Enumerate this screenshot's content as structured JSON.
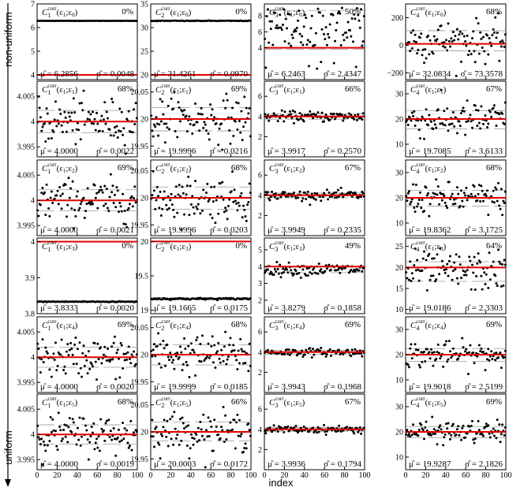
{
  "figure": {
    "left_label": "non-uniform",
    "left_label_bottom": "uniform",
    "xlabel": "index",
    "xticks": [
      "0",
      "20",
      "40",
      "60",
      "80",
      "100"
    ]
  },
  "chart_data": {
    "type": "scatter",
    "xlim": [
      0,
      100
    ],
    "columns": [
      {
        "yticks_by_row": [
          [
            "4",
            "5",
            "6",
            "7"
          ],
          [
            "3.995",
            "4",
            "4.005"
          ],
          [
            "3.995",
            "4",
            "4.005"
          ],
          [
            "3.8",
            "3.9",
            "4"
          ],
          [
            "3.995",
            "4",
            "4.005"
          ],
          [
            "3.995",
            "4",
            "4.005"
          ]
        ]
      },
      {
        "yticks_by_row": [
          [
            "20",
            "25",
            "30",
            "35"
          ],
          [
            "19.95",
            "20",
            "20.05"
          ],
          [
            "19.95",
            "20",
            "20.05"
          ],
          [
            "19",
            "19.5",
            "20"
          ],
          [
            "19.95",
            "20",
            "20.05"
          ],
          [
            "19.95",
            "20",
            "20.05"
          ]
        ]
      },
      {
        "yticks_by_row": [
          [
            "4",
            "6",
            "8"
          ],
          [
            "2",
            "4",
            "6"
          ],
          [
            "2",
            "4",
            "6"
          ],
          [
            "2",
            "3",
            "4",
            "5"
          ],
          [
            "2",
            "4",
            "6"
          ],
          [
            "2",
            "4",
            "6"
          ]
        ]
      },
      {
        "yticks_by_row": [
          [
            "−200",
            "0",
            "200"
          ],
          [
            "10",
            "20",
            "30"
          ],
          [
            "10",
            "20",
            "30"
          ],
          [
            "10",
            "15",
            "20",
            "25"
          ],
          [
            "10",
            "20",
            "30"
          ],
          [
            "10",
            "20",
            "30"
          ]
        ]
      }
    ],
    "panels": [
      {
        "row": 0,
        "col": 0,
        "name": "C_1^corr(ε1;ε0)",
        "C": "1",
        "e": "0",
        "pct": "0%",
        "mu": "6.2856",
        "sigma": "0.0048",
        "ylim": [
          3.8,
          7
        ],
        "mean": 6.2856,
        "band": [
          6.2808,
          6.2904
        ],
        "red": 4.0,
        "pattern": "flat"
      },
      {
        "row": 0,
        "col": 1,
        "name": "C_2^corr(ε1;ε0)",
        "C": "2",
        "e": "0",
        "pct": "0%",
        "mu": "31.4261",
        "sigma": "0.0970",
        "ylim": [
          19,
          35
        ],
        "mean": 31.4261,
        "band": [
          31.33,
          31.52
        ],
        "red": 20.0,
        "pattern": "flat"
      },
      {
        "row": 0,
        "col": 2,
        "name": "C_3^corr(ε1;ε0)",
        "C": "3",
        "e": "0",
        "pct": "50%",
        "mu": "6.2463",
        "sigma": "2.4347",
        "ylim": [
          0,
          9.5
        ],
        "mean": 6.2463,
        "band": [
          3.81,
          8.68
        ],
        "red": 4.0,
        "pattern": "bimodal",
        "lo": [
          1.2,
          2.5
        ],
        "hi": [
          4.2,
          9
        ]
      },
      {
        "row": 0,
        "col": 3,
        "name": "C_4^corr(ε1;ε0)",
        "C": "4",
        "e": "0",
        "pct": "68%",
        "mu": "32.0834",
        "sigma": "73.3578",
        "ylim": [
          -250,
          300
        ],
        "mean": 32.08,
        "band": [
          -41.27,
          105.44
        ],
        "red": 10,
        "pattern": "noise"
      },
      {
        "row": 1,
        "col": 0,
        "name": "C_1^corr(ε1;ε1)",
        "C": "1",
        "e": "1",
        "pct": "68%",
        "mu": "4.0000",
        "sigma": "0.0022",
        "ylim": [
          3.993,
          4.008
        ],
        "mean": 4.0,
        "band": [
          3.9978,
          4.0022
        ],
        "red": 4.0,
        "pattern": "noise"
      },
      {
        "row": 1,
        "col": 1,
        "name": "C_2^corr(ε1;ε1)",
        "C": "2",
        "e": "1",
        "pct": "69%",
        "mu": "19.9996",
        "sigma": "0.0216",
        "ylim": [
          19.93,
          20.07
        ],
        "mean": 19.9996,
        "band": [
          19.978,
          20.021
        ],
        "red": 20.0,
        "pattern": "noise"
      },
      {
        "row": 1,
        "col": 2,
        "name": "C_3^corr(ε1;ε1)",
        "C": "3",
        "e": "1",
        "pct": "66%",
        "mu": "3.9917",
        "sigma": "0.2570",
        "ylim": [
          0,
          7.5
        ],
        "mean": 3.9917,
        "band": [
          3.735,
          4.249
        ],
        "red": 4.0,
        "pattern": "noise"
      },
      {
        "row": 1,
        "col": 3,
        "name": "C_4^corr(ε1;ε1)",
        "C": "4",
        "e": "1",
        "pct": "67%",
        "mu": "19.7085",
        "sigma": "3.6133",
        "ylim": [
          5,
          35
        ],
        "mean": 19.7085,
        "band": [
          16.1,
          23.32
        ],
        "red": 20.0,
        "pattern": "noise"
      },
      {
        "row": 2,
        "col": 0,
        "name": "C_1^corr(ε1;ε2)",
        "C": "1",
        "e": "2",
        "pct": "69%",
        "mu": "4.0000",
        "sigma": "0.0021",
        "ylim": [
          3.993,
          4.008
        ],
        "mean": 4.0,
        "band": [
          3.9979,
          4.0021
        ],
        "red": 4.0,
        "pattern": "noise"
      },
      {
        "row": 2,
        "col": 1,
        "name": "C_2^corr(ε1;ε2)",
        "C": "2",
        "e": "2",
        "pct": "68%",
        "mu": "19.9996",
        "sigma": "0.0203",
        "ylim": [
          19.93,
          20.07
        ],
        "mean": 19.9996,
        "band": [
          19.979,
          20.02
        ],
        "red": 20.0,
        "pattern": "noise"
      },
      {
        "row": 2,
        "col": 2,
        "name": "C_3^corr(ε1;ε2)",
        "C": "3",
        "e": "2",
        "pct": "67%",
        "mu": "3.9949",
        "sigma": "0.2335",
        "ylim": [
          0,
          7.5
        ],
        "mean": 3.9949,
        "band": [
          3.761,
          4.228
        ],
        "red": 4.0,
        "pattern": "noise"
      },
      {
        "row": 2,
        "col": 3,
        "name": "C_4^corr(ε1;ε2)",
        "C": "4",
        "e": "2",
        "pct": "68%",
        "mu": "19.8362",
        "sigma": "3.1725",
        "ylim": [
          5,
          35
        ],
        "mean": 19.8362,
        "band": [
          16.66,
          23.01
        ],
        "red": 20.0,
        "pattern": "noise"
      },
      {
        "row": 3,
        "col": 0,
        "name": "C_1^corr(ε1;ε3)",
        "C": "1",
        "e": "3",
        "pct": "0%",
        "mu": "3.8333",
        "sigma": "0.0020",
        "ylim": [
          3.8,
          4.01
        ],
        "mean": 3.8333,
        "band": [
          3.8313,
          3.8353
        ],
        "red": 4.0,
        "pattern": "flat"
      },
      {
        "row": 3,
        "col": 1,
        "name": "C_2^corr(ε1;ε3)",
        "C": "2",
        "e": "3",
        "pct": "0%",
        "mu": "19.1665",
        "sigma": "0.0175",
        "ylim": [
          18.95,
          20.05
        ],
        "mean": 19.1665,
        "band": [
          19.149,
          19.184
        ],
        "red": 20.0,
        "pattern": "flat"
      },
      {
        "row": 3,
        "col": 2,
        "name": "C_3^corr(ε1;ε3)",
        "C": "3",
        "e": "3",
        "pct": "49%",
        "mu": "3.8279",
        "sigma": "0.1858",
        "ylim": [
          1.2,
          5.7
        ],
        "mean": 3.8279,
        "band": [
          3.642,
          4.014
        ],
        "red": 4.0,
        "pattern": "noise"
      },
      {
        "row": 3,
        "col": 3,
        "name": "C_4^corr(ε1;ε3)",
        "C": "4",
        "e": "3",
        "pct": "64%",
        "mu": "19.0186",
        "sigma": "2.3303",
        "ylim": [
          9,
          27
        ],
        "mean": 19.0186,
        "band": [
          16.69,
          21.35
        ],
        "red": 20.0,
        "pattern": "noise"
      },
      {
        "row": 4,
        "col": 0,
        "name": "C_1^corr(ε1;ε4)",
        "C": "1",
        "e": "4",
        "pct": "69%",
        "mu": "4.0000",
        "sigma": "0.0020",
        "ylim": [
          3.993,
          4.008
        ],
        "mean": 4.0,
        "band": [
          3.998,
          4.002
        ],
        "red": 4.0,
        "pattern": "noise"
      },
      {
        "row": 4,
        "col": 1,
        "name": "C_2^corr(ε1;ε4)",
        "C": "2",
        "e": "4",
        "pct": "68%",
        "mu": "19.9999",
        "sigma": "0.0185",
        "ylim": [
          19.93,
          20.07
        ],
        "mean": 19.9999,
        "band": [
          19.981,
          20.018
        ],
        "red": 20.0,
        "pattern": "noise"
      },
      {
        "row": 4,
        "col": 2,
        "name": "C_3^corr(ε1;ε4)",
        "C": "3",
        "e": "4",
        "pct": "69%",
        "mu": "3.9943",
        "sigma": "0.1968",
        "ylim": [
          0,
          7.5
        ],
        "mean": 3.9943,
        "band": [
          3.798,
          4.191
        ],
        "red": 4.0,
        "pattern": "noise"
      },
      {
        "row": 4,
        "col": 3,
        "name": "C_4^corr(ε1;ε4)",
        "C": "4",
        "e": "4",
        "pct": "69%",
        "mu": "19.9018",
        "sigma": "2.5199",
        "ylim": [
          5,
          35
        ],
        "mean": 19.9018,
        "band": [
          17.38,
          22.42
        ],
        "red": 20.0,
        "pattern": "noise"
      },
      {
        "row": 5,
        "col": 0,
        "name": "C_1^corr(ε1;ε5)",
        "C": "1",
        "e": "5",
        "pct": "68%",
        "mu": "4.0000",
        "sigma": "0.0019",
        "ylim": [
          3.993,
          4.008
        ],
        "mean": 4.0,
        "band": [
          3.9981,
          4.0019
        ],
        "red": 4.0,
        "pattern": "noise"
      },
      {
        "row": 5,
        "col": 1,
        "name": "C_2^corr(ε1;ε5)",
        "C": "2",
        "e": "5",
        "pct": "66%",
        "mu": "20.0003",
        "sigma": "0.0172",
        "ylim": [
          19.93,
          20.07
        ],
        "mean": 20.0003,
        "band": [
          19.983,
          20.018
        ],
        "red": 20.0,
        "pattern": "noise"
      },
      {
        "row": 5,
        "col": 2,
        "name": "C_3^corr(ε1;ε5)",
        "C": "3",
        "e": "5",
        "pct": "67%",
        "mu": "3.9936",
        "sigma": "0.1794",
        "ylim": [
          0,
          7.5
        ],
        "mean": 3.9936,
        "band": [
          3.814,
          4.173
        ],
        "red": 4.0,
        "pattern": "noise"
      },
      {
        "row": 5,
        "col": 3,
        "name": "C_4^corr(ε1;ε5)",
        "C": "4",
        "e": "5",
        "pct": "69%",
        "mu": "19.9287",
        "sigma": "2.1826",
        "ylim": [
          5,
          35
        ],
        "mean": 19.9287,
        "band": [
          17.75,
          22.11
        ],
        "red": 20.0,
        "pattern": "noise"
      }
    ]
  }
}
